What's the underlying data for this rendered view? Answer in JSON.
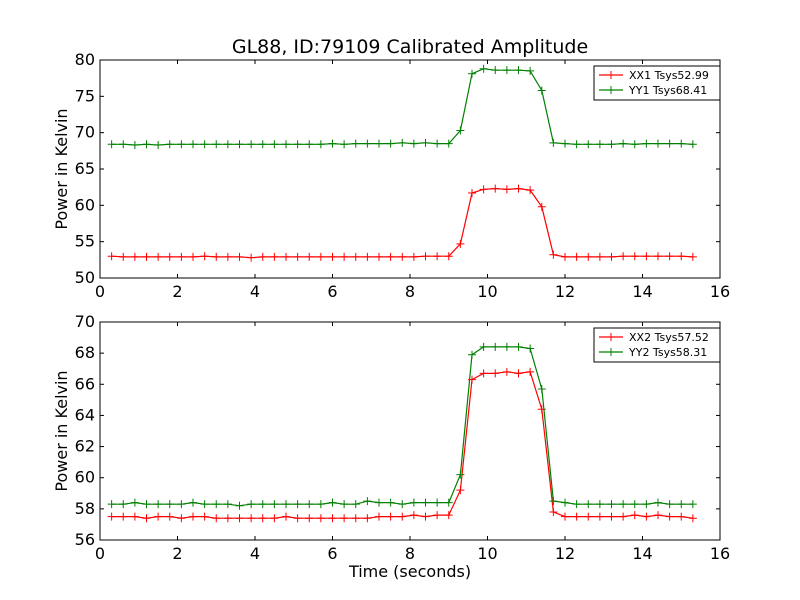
{
  "chart_data": [
    {
      "type": "line",
      "title": "GL88, ID:79109 Calibrated Amplitude",
      "xlabel": "",
      "ylabel": "Power in Kelvin",
      "xlim": [
        0,
        16
      ],
      "ylim": [
        50,
        80
      ],
      "xticks": [
        "0",
        "2",
        "4",
        "6",
        "8",
        "10",
        "12",
        "14",
        "16"
      ],
      "yticks": [
        "50",
        "55",
        "60",
        "65",
        "70",
        "75",
        "80"
      ],
      "legend_position": "top-right",
      "x": [
        0.3,
        0.6,
        0.9,
        1.2,
        1.5,
        1.8,
        2.1,
        2.4,
        2.7,
        3.0,
        3.3,
        3.6,
        3.9,
        4.2,
        4.5,
        4.8,
        5.1,
        5.4,
        5.7,
        6.0,
        6.3,
        6.6,
        6.9,
        7.2,
        7.5,
        7.8,
        8.1,
        8.4,
        8.7,
        9.0,
        9.3,
        9.6,
        9.9,
        10.2,
        10.5,
        10.8,
        11.1,
        11.4,
        11.7,
        12.0,
        12.3,
        12.6,
        12.9,
        13.2,
        13.5,
        13.8,
        14.1,
        14.4,
        14.7,
        15.0,
        15.3
      ],
      "series": [
        {
          "name": "XX1 Tsys52.99",
          "color": "#ff0000",
          "values": [
            53.0,
            52.9,
            52.9,
            52.9,
            52.9,
            52.9,
            52.9,
            52.9,
            53.0,
            52.9,
            52.9,
            52.9,
            52.8,
            52.9,
            52.9,
            52.9,
            52.9,
            52.9,
            52.9,
            52.9,
            52.9,
            52.9,
            52.9,
            52.9,
            52.9,
            52.9,
            52.9,
            53.0,
            53.0,
            53.0,
            54.7,
            61.7,
            62.2,
            62.3,
            62.2,
            62.3,
            62.1,
            59.8,
            53.2,
            52.9,
            52.9,
            52.9,
            52.9,
            52.9,
            53.0,
            53.0,
            53.0,
            53.0,
            53.0,
            53.0,
            52.9
          ]
        },
        {
          "name": "YY1 Tsys68.41",
          "color": "#008000",
          "values": [
            68.4,
            68.4,
            68.3,
            68.4,
            68.3,
            68.4,
            68.4,
            68.4,
            68.4,
            68.4,
            68.4,
            68.4,
            68.4,
            68.4,
            68.4,
            68.4,
            68.4,
            68.4,
            68.4,
            68.5,
            68.4,
            68.5,
            68.5,
            68.5,
            68.5,
            68.6,
            68.5,
            68.6,
            68.5,
            68.5,
            70.3,
            78.1,
            78.8,
            78.6,
            78.6,
            78.6,
            78.5,
            75.8,
            68.6,
            68.5,
            68.4,
            68.4,
            68.4,
            68.4,
            68.5,
            68.4,
            68.5,
            68.5,
            68.5,
            68.5,
            68.4
          ]
        }
      ]
    },
    {
      "type": "line",
      "title": "",
      "xlabel": "Time (seconds)",
      "ylabel": "Power in Kelvin",
      "xlim": [
        0,
        16
      ],
      "ylim": [
        56,
        70
      ],
      "xticks": [
        "0",
        "2",
        "4",
        "6",
        "8",
        "10",
        "12",
        "14",
        "16"
      ],
      "yticks": [
        "56",
        "58",
        "60",
        "62",
        "64",
        "66",
        "68",
        "70"
      ],
      "legend_position": "top-right",
      "x": [
        0.3,
        0.6,
        0.9,
        1.2,
        1.5,
        1.8,
        2.1,
        2.4,
        2.7,
        3.0,
        3.3,
        3.6,
        3.9,
        4.2,
        4.5,
        4.8,
        5.1,
        5.4,
        5.7,
        6.0,
        6.3,
        6.6,
        6.9,
        7.2,
        7.5,
        7.8,
        8.1,
        8.4,
        8.7,
        9.0,
        9.3,
        9.6,
        9.9,
        10.2,
        10.5,
        10.8,
        11.1,
        11.4,
        11.7,
        12.0,
        12.3,
        12.6,
        12.9,
        13.2,
        13.5,
        13.8,
        14.1,
        14.4,
        14.7,
        15.0,
        15.3
      ],
      "series": [
        {
          "name": "XX2 Tsys57.52",
          "color": "#ff0000",
          "values": [
            57.5,
            57.5,
            57.5,
            57.4,
            57.5,
            57.5,
            57.4,
            57.5,
            57.5,
            57.4,
            57.4,
            57.4,
            57.4,
            57.4,
            57.4,
            57.5,
            57.4,
            57.4,
            57.4,
            57.4,
            57.4,
            57.4,
            57.4,
            57.5,
            57.5,
            57.5,
            57.6,
            57.5,
            57.6,
            57.6,
            59.2,
            66.3,
            66.7,
            66.7,
            66.8,
            66.7,
            66.8,
            64.4,
            57.8,
            57.5,
            57.5,
            57.5,
            57.5,
            57.5,
            57.5,
            57.6,
            57.5,
            57.6,
            57.5,
            57.5,
            57.4
          ]
        },
        {
          "name": "YY2 Tsys58.31",
          "color": "#008000",
          "values": [
            58.3,
            58.3,
            58.4,
            58.3,
            58.3,
            58.3,
            58.3,
            58.4,
            58.3,
            58.3,
            58.3,
            58.2,
            58.3,
            58.3,
            58.3,
            58.3,
            58.3,
            58.3,
            58.3,
            58.4,
            58.3,
            58.3,
            58.5,
            58.4,
            58.4,
            58.3,
            58.4,
            58.4,
            58.4,
            58.4,
            60.2,
            67.9,
            68.4,
            68.4,
            68.4,
            68.4,
            68.3,
            65.7,
            58.5,
            58.4,
            58.3,
            58.3,
            58.3,
            58.3,
            58.3,
            58.3,
            58.3,
            58.4,
            58.3,
            58.3,
            58.3
          ]
        }
      ]
    }
  ]
}
